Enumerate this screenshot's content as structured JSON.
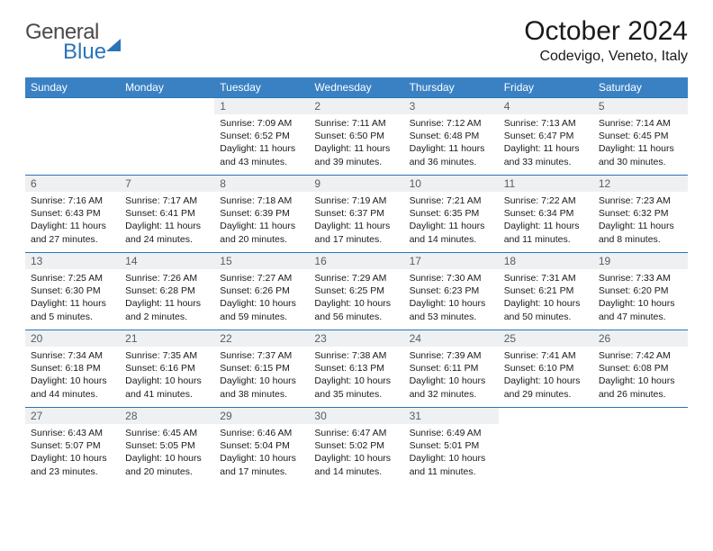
{
  "brand": {
    "general": "General",
    "blue": "Blue"
  },
  "title": "October 2024",
  "subtitle": "Codevigo, Veneto, Italy",
  "colors": {
    "header_bg": "#3a81c4",
    "border": "#2a74b8",
    "daynum_bg": "#eef0f2",
    "text": "#1a1a1a"
  },
  "weekdays": [
    "Sunday",
    "Monday",
    "Tuesday",
    "Wednesday",
    "Thursday",
    "Friday",
    "Saturday"
  ],
  "weeks": [
    [
      null,
      null,
      {
        "n": "1",
        "sr": "Sunrise: 7:09 AM",
        "ss": "Sunset: 6:52 PM",
        "dl1": "Daylight: 11 hours",
        "dl2": "and 43 minutes."
      },
      {
        "n": "2",
        "sr": "Sunrise: 7:11 AM",
        "ss": "Sunset: 6:50 PM",
        "dl1": "Daylight: 11 hours",
        "dl2": "and 39 minutes."
      },
      {
        "n": "3",
        "sr": "Sunrise: 7:12 AM",
        "ss": "Sunset: 6:48 PM",
        "dl1": "Daylight: 11 hours",
        "dl2": "and 36 minutes."
      },
      {
        "n": "4",
        "sr": "Sunrise: 7:13 AM",
        "ss": "Sunset: 6:47 PM",
        "dl1": "Daylight: 11 hours",
        "dl2": "and 33 minutes."
      },
      {
        "n": "5",
        "sr": "Sunrise: 7:14 AM",
        "ss": "Sunset: 6:45 PM",
        "dl1": "Daylight: 11 hours",
        "dl2": "and 30 minutes."
      }
    ],
    [
      {
        "n": "6",
        "sr": "Sunrise: 7:16 AM",
        "ss": "Sunset: 6:43 PM",
        "dl1": "Daylight: 11 hours",
        "dl2": "and 27 minutes."
      },
      {
        "n": "7",
        "sr": "Sunrise: 7:17 AM",
        "ss": "Sunset: 6:41 PM",
        "dl1": "Daylight: 11 hours",
        "dl2": "and 24 minutes."
      },
      {
        "n": "8",
        "sr": "Sunrise: 7:18 AM",
        "ss": "Sunset: 6:39 PM",
        "dl1": "Daylight: 11 hours",
        "dl2": "and 20 minutes."
      },
      {
        "n": "9",
        "sr": "Sunrise: 7:19 AM",
        "ss": "Sunset: 6:37 PM",
        "dl1": "Daylight: 11 hours",
        "dl2": "and 17 minutes."
      },
      {
        "n": "10",
        "sr": "Sunrise: 7:21 AM",
        "ss": "Sunset: 6:35 PM",
        "dl1": "Daylight: 11 hours",
        "dl2": "and 14 minutes."
      },
      {
        "n": "11",
        "sr": "Sunrise: 7:22 AM",
        "ss": "Sunset: 6:34 PM",
        "dl1": "Daylight: 11 hours",
        "dl2": "and 11 minutes."
      },
      {
        "n": "12",
        "sr": "Sunrise: 7:23 AM",
        "ss": "Sunset: 6:32 PM",
        "dl1": "Daylight: 11 hours",
        "dl2": "and 8 minutes."
      }
    ],
    [
      {
        "n": "13",
        "sr": "Sunrise: 7:25 AM",
        "ss": "Sunset: 6:30 PM",
        "dl1": "Daylight: 11 hours",
        "dl2": "and 5 minutes."
      },
      {
        "n": "14",
        "sr": "Sunrise: 7:26 AM",
        "ss": "Sunset: 6:28 PM",
        "dl1": "Daylight: 11 hours",
        "dl2": "and 2 minutes."
      },
      {
        "n": "15",
        "sr": "Sunrise: 7:27 AM",
        "ss": "Sunset: 6:26 PM",
        "dl1": "Daylight: 10 hours",
        "dl2": "and 59 minutes."
      },
      {
        "n": "16",
        "sr": "Sunrise: 7:29 AM",
        "ss": "Sunset: 6:25 PM",
        "dl1": "Daylight: 10 hours",
        "dl2": "and 56 minutes."
      },
      {
        "n": "17",
        "sr": "Sunrise: 7:30 AM",
        "ss": "Sunset: 6:23 PM",
        "dl1": "Daylight: 10 hours",
        "dl2": "and 53 minutes."
      },
      {
        "n": "18",
        "sr": "Sunrise: 7:31 AM",
        "ss": "Sunset: 6:21 PM",
        "dl1": "Daylight: 10 hours",
        "dl2": "and 50 minutes."
      },
      {
        "n": "19",
        "sr": "Sunrise: 7:33 AM",
        "ss": "Sunset: 6:20 PM",
        "dl1": "Daylight: 10 hours",
        "dl2": "and 47 minutes."
      }
    ],
    [
      {
        "n": "20",
        "sr": "Sunrise: 7:34 AM",
        "ss": "Sunset: 6:18 PM",
        "dl1": "Daylight: 10 hours",
        "dl2": "and 44 minutes."
      },
      {
        "n": "21",
        "sr": "Sunrise: 7:35 AM",
        "ss": "Sunset: 6:16 PM",
        "dl1": "Daylight: 10 hours",
        "dl2": "and 41 minutes."
      },
      {
        "n": "22",
        "sr": "Sunrise: 7:37 AM",
        "ss": "Sunset: 6:15 PM",
        "dl1": "Daylight: 10 hours",
        "dl2": "and 38 minutes."
      },
      {
        "n": "23",
        "sr": "Sunrise: 7:38 AM",
        "ss": "Sunset: 6:13 PM",
        "dl1": "Daylight: 10 hours",
        "dl2": "and 35 minutes."
      },
      {
        "n": "24",
        "sr": "Sunrise: 7:39 AM",
        "ss": "Sunset: 6:11 PM",
        "dl1": "Daylight: 10 hours",
        "dl2": "and 32 minutes."
      },
      {
        "n": "25",
        "sr": "Sunrise: 7:41 AM",
        "ss": "Sunset: 6:10 PM",
        "dl1": "Daylight: 10 hours",
        "dl2": "and 29 minutes."
      },
      {
        "n": "26",
        "sr": "Sunrise: 7:42 AM",
        "ss": "Sunset: 6:08 PM",
        "dl1": "Daylight: 10 hours",
        "dl2": "and 26 minutes."
      }
    ],
    [
      {
        "n": "27",
        "sr": "Sunrise: 6:43 AM",
        "ss": "Sunset: 5:07 PM",
        "dl1": "Daylight: 10 hours",
        "dl2": "and 23 minutes."
      },
      {
        "n": "28",
        "sr": "Sunrise: 6:45 AM",
        "ss": "Sunset: 5:05 PM",
        "dl1": "Daylight: 10 hours",
        "dl2": "and 20 minutes."
      },
      {
        "n": "29",
        "sr": "Sunrise: 6:46 AM",
        "ss": "Sunset: 5:04 PM",
        "dl1": "Daylight: 10 hours",
        "dl2": "and 17 minutes."
      },
      {
        "n": "30",
        "sr": "Sunrise: 6:47 AM",
        "ss": "Sunset: 5:02 PM",
        "dl1": "Daylight: 10 hours",
        "dl2": "and 14 minutes."
      },
      {
        "n": "31",
        "sr": "Sunrise: 6:49 AM",
        "ss": "Sunset: 5:01 PM",
        "dl1": "Daylight: 10 hours",
        "dl2": "and 11 minutes."
      },
      null,
      null
    ]
  ]
}
